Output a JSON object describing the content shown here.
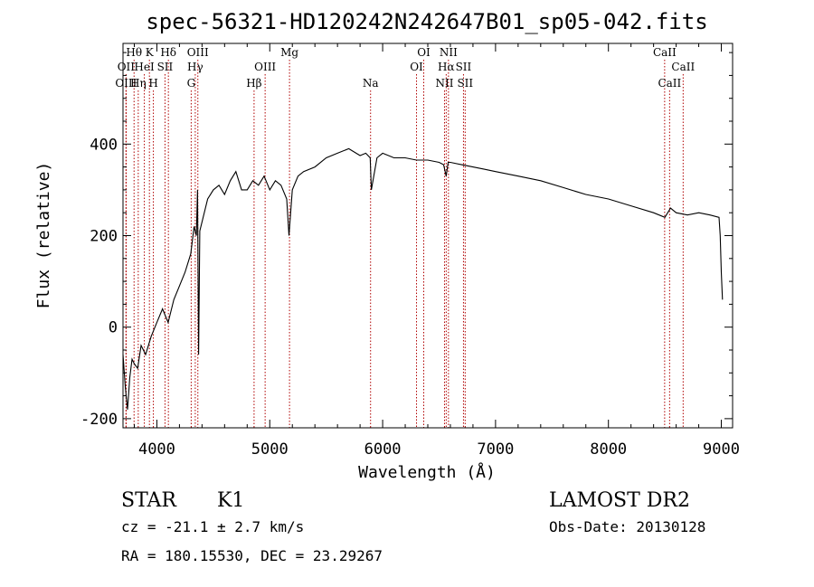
{
  "title": "spec-56321-HD120242N242647B01_sp05-042.fits",
  "chart_data": {
    "type": "line",
    "xlabel": "Wavelength (Å)",
    "ylabel": "Flux (relative)",
    "xlim": [
      3700,
      9100
    ],
    "ylim": [
      -220,
      620
    ],
    "x_ticks": [
      4000,
      5000,
      6000,
      7000,
      8000,
      9000
    ],
    "y_ticks": [
      -200,
      0,
      200,
      400
    ],
    "grid": false,
    "line_color": "#000000",
    "marker_color": "#b00000",
    "series": [
      {
        "x": [
          3700,
          3720,
          3740,
          3760,
          3780,
          3800,
          3830,
          3860,
          3900,
          3950,
          4000,
          4050,
          4100,
          4150,
          4200,
          4250,
          4300,
          4330,
          4350,
          4360,
          4370,
          4380,
          4400,
          4450,
          4500,
          4550,
          4600,
          4650,
          4700,
          4750,
          4800,
          4850,
          4900,
          4950,
          5000,
          5050,
          5100,
          5150,
          5170,
          5200,
          5250,
          5300,
          5400,
          5500,
          5600,
          5700,
          5800,
          5850,
          5890,
          5900,
          5950,
          6000,
          6100,
          6200,
          6300,
          6400,
          6500,
          6540,
          6563,
          6580,
          6600,
          6700,
          6800,
          6900,
          7000,
          7200,
          7400,
          7600,
          7800,
          8000,
          8200,
          8400,
          8500,
          8550,
          8600,
          8700,
          8800,
          8900,
          8980,
          8990,
          9000,
          9010
        ],
        "y": [
          -60,
          -130,
          -180,
          -110,
          -70,
          -80,
          -90,
          -40,
          -60,
          -20,
          10,
          40,
          10,
          60,
          90,
          120,
          160,
          220,
          200,
          300,
          -60,
          210,
          230,
          280,
          300,
          310,
          290,
          320,
          340,
          300,
          300,
          320,
          310,
          330,
          300,
          320,
          310,
          280,
          200,
          300,
          330,
          340,
          350,
          370,
          380,
          390,
          375,
          380,
          370,
          300,
          370,
          380,
          370,
          370,
          365,
          365,
          360,
          355,
          330,
          360,
          360,
          355,
          350,
          345,
          340,
          330,
          320,
          305,
          290,
          280,
          265,
          250,
          240,
          260,
          250,
          245,
          250,
          245,
          240,
          200,
          120,
          60
        ]
      }
    ],
    "spectral_lines": [
      {
        "label": "Hθ",
        "x": 3798,
        "row": 1
      },
      {
        "label": "OII",
        "x": 3727,
        "row": 2
      },
      {
        "label": "OIII",
        "x": 3727,
        "row": 3
      },
      {
        "label": "K",
        "x": 3934,
        "row": 1
      },
      {
        "label": "HeI",
        "x": 3889,
        "row": 2
      },
      {
        "label": "Hη",
        "x": 3835,
        "row": 3
      },
      {
        "label": "SII",
        "x": 4072,
        "row": 2
      },
      {
        "label": "H",
        "x": 3969,
        "row": 3
      },
      {
        "label": "Hδ",
        "x": 4102,
        "row": 1
      },
      {
        "label": "OIII",
        "x": 4363,
        "row": 1
      },
      {
        "label": "Hγ",
        "x": 4340,
        "row": 2
      },
      {
        "label": "G",
        "x": 4304,
        "row": 3
      },
      {
        "label": "OIII",
        "x": 4959,
        "row": 2
      },
      {
        "label": "Hβ",
        "x": 4861,
        "row": 3
      },
      {
        "label": "Mg",
        "x": 5175,
        "row": 1
      },
      {
        "label": "Na",
        "x": 5893,
        "row": 3
      },
      {
        "label": "OI",
        "x": 6364,
        "row": 1
      },
      {
        "label": "OI",
        "x": 6300,
        "row": 2
      },
      {
        "label": "NII",
        "x": 6583,
        "row": 1
      },
      {
        "label": "Hα",
        "x": 6563,
        "row": 2
      },
      {
        "label": "NII",
        "x": 6548,
        "row": 3
      },
      {
        "label": "SII",
        "x": 6716,
        "row": 2
      },
      {
        "label": "SII",
        "x": 6731,
        "row": 3
      },
      {
        "label": "CaII",
        "x": 8498,
        "row": 1
      },
      {
        "label": "CaII",
        "x": 8662,
        "row": 2
      },
      {
        "label": "CaII",
        "x": 8542,
        "row": 3
      }
    ]
  },
  "info": {
    "class_label": "STAR",
    "subclass_label": "K1",
    "survey_label": "LAMOST DR2",
    "cz_text": "cz = -21.1 ± 2.7 km/s",
    "obs_date_text": "Obs-Date: 20130128",
    "radec_text": "RA = 180.15530, DEC =  23.29267"
  }
}
